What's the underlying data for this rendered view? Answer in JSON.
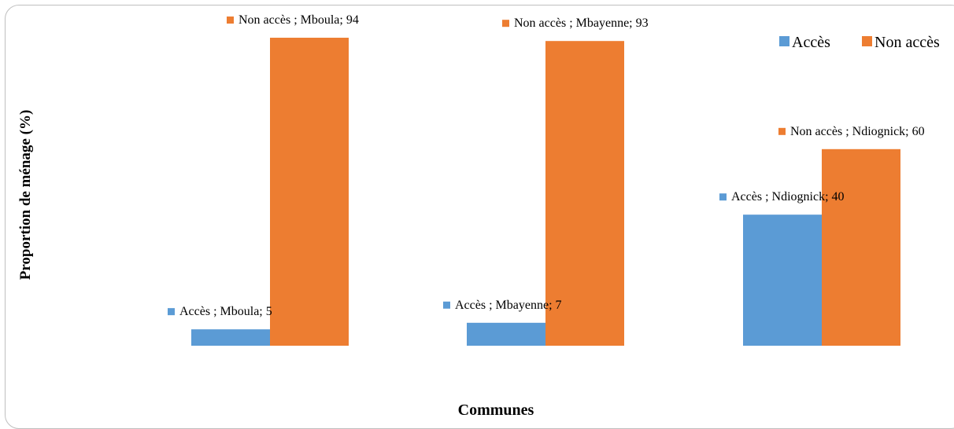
{
  "chart_data": {
    "type": "bar",
    "xlabel": "Communes",
    "ylabel": "Proportion de ménage (%)",
    "categories": [
      "Mboula",
      "Mbayenne",
      "Ndiognick"
    ],
    "series": [
      {
        "name": "Accès",
        "color": "#5b9bd5",
        "values": [
          5,
          7,
          40
        ]
      },
      {
        "name": "Non accès",
        "color": "#ed7d31",
        "values": [
          94,
          93,
          60
        ]
      }
    ],
    "legend": {
      "position": "top-right"
    },
    "data_labels": [
      {
        "series": 0,
        "index": 0,
        "text": "Accès ; Mboula; 5"
      },
      {
        "series": 0,
        "index": 1,
        "text": "Accès ; Mbayenne; 7"
      },
      {
        "series": 0,
        "index": 2,
        "text": "Accès ; Ndiognick; 40"
      },
      {
        "series": 1,
        "index": 0,
        "text": "Non accès ; Mboula; 94"
      },
      {
        "series": 1,
        "index": 1,
        "text": "Non accès ; Mbayenne; 93"
      },
      {
        "series": 1,
        "index": 2,
        "text": "Non accès ; Ndiognick; 60"
      }
    ],
    "ylim": [
      0,
      100
    ],
    "grid": false
  }
}
